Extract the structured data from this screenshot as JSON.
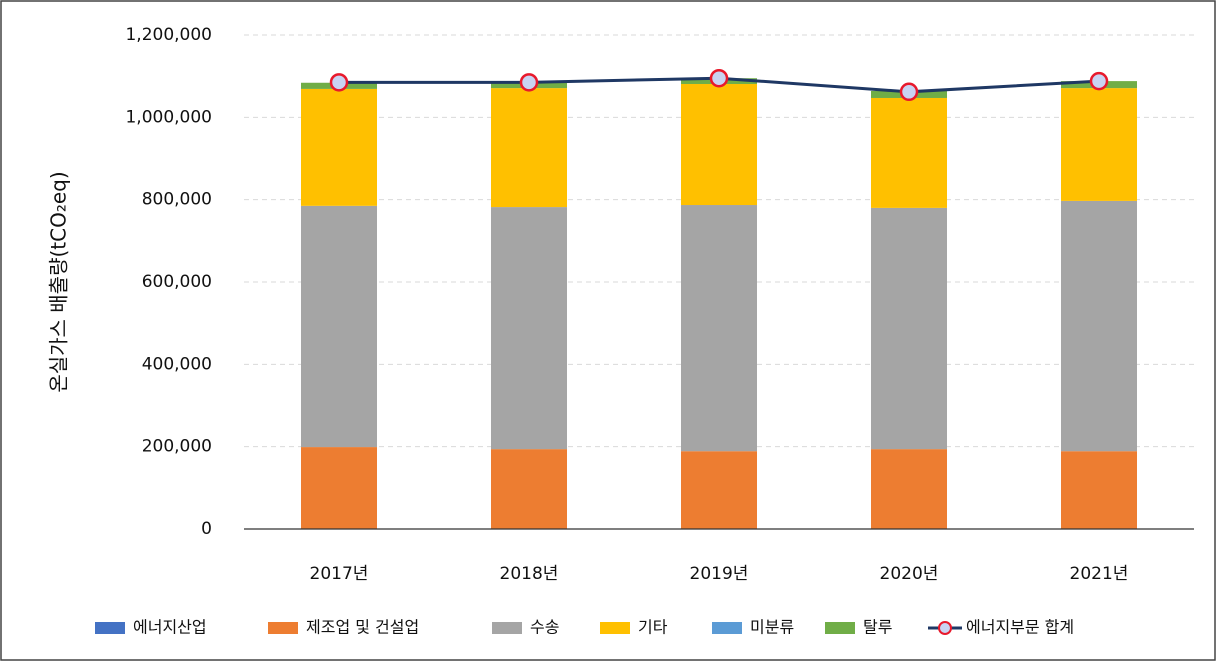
{
  "chart_data": {
    "type": "bar",
    "stacked": true,
    "y_label": "온실가스 배출량(tCO₂eq)",
    "categories": [
      "2017년",
      "2018년",
      "2019년",
      "2020년",
      "2021년"
    ],
    "series": [
      {
        "name": "에너지산업",
        "color": "#4472c4",
        "values": [
          0,
          0,
          0,
          0,
          0
        ]
      },
      {
        "name": "제조업 및 건설업",
        "color": "#ed7d31",
        "values": [
          199000,
          194000,
          189000,
          194000,
          189000
        ]
      },
      {
        "name": "수송",
        "color": "#a5a5a5",
        "values": [
          586000,
          588000,
          598000,
          586000,
          608000
        ]
      },
      {
        "name": "기타",
        "color": "#ffc000",
        "values": [
          284000,
          289000,
          294000,
          267000,
          274000
        ]
      },
      {
        "name": "미분류",
        "color": "#5b9bd5",
        "values": [
          0,
          0,
          0,
          0,
          0
        ]
      },
      {
        "name": "탈루",
        "color": "#70ad47",
        "values": [
          15000,
          15000,
          14000,
          17000,
          17000
        ]
      },
      {
        "name": "에너지부문 합계",
        "type": "line",
        "color": "#1f3864",
        "marker_edge": "#e8192c",
        "marker_fill": "#c9d3f2",
        "values": [
          1085000,
          1085000,
          1095000,
          1062000,
          1088000
        ]
      }
    ],
    "ylim": [
      0,
      1200000
    ],
    "yticks": [
      0,
      {
        "value": 200000,
        "label": "200,000"
      },
      {
        "value": 400000,
        "label": "400,000"
      },
      {
        "value": 600000,
        "label": "600,000"
      },
      {
        "value": 800000,
        "label": "800,000"
      },
      {
        "value": 1000000,
        "label": "1,000,000"
      },
      {
        "value": 1200000,
        "label": "1,200,000"
      }
    ],
    "grid": true,
    "legend": "bottom"
  }
}
